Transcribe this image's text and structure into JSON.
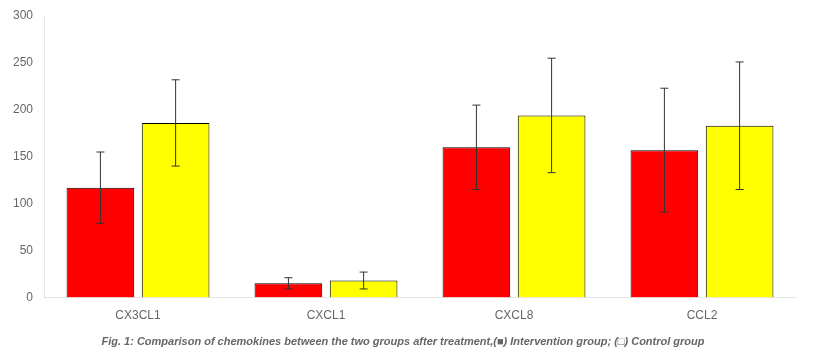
{
  "chart_data": {
    "type": "bar",
    "title": "Fig. 1: Comparison of chemokines between the two groups after treatment,(■) Intervention group; (□) Control group",
    "categories": [
      "CX3CL1",
      "CXCL1",
      "CXCL8",
      "CCL2"
    ],
    "series": [
      {
        "name": "Intervention group",
        "color": "#ff0000",
        "values": [
          117,
          15,
          160,
          157
        ],
        "errors": [
          38,
          6,
          45,
          66
        ]
      },
      {
        "name": "Control group",
        "color": "#ffff00",
        "values": [
          186,
          18,
          194,
          183
        ],
        "errors": [
          46,
          9,
          61,
          68
        ]
      }
    ],
    "ylim": [
      0,
      300
    ],
    "yticks": [
      0,
      50,
      100,
      150,
      200,
      250,
      300
    ],
    "grid": false
  }
}
